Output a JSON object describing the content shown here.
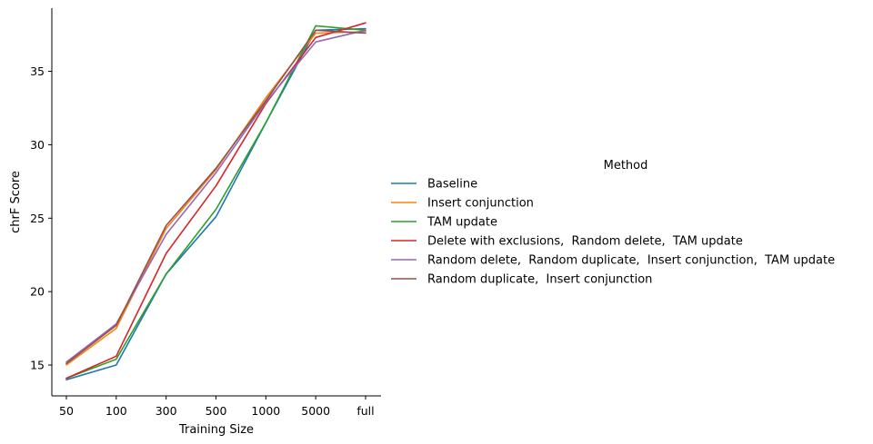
{
  "chart_data": {
    "type": "line",
    "xlabel": "Training Size",
    "ylabel": "chrF Score",
    "categories": [
      "50",
      "100",
      "300",
      "500",
      "1000",
      "5000",
      "full"
    ],
    "yticks": [
      15,
      20,
      25,
      30,
      35
    ],
    "ylim": [
      12.9,
      39.3
    ],
    "grid": false,
    "legend": {
      "title": "Method",
      "placement": "right"
    },
    "series": [
      {
        "name": "Baseline",
        "color": "#1f77b4",
        "values": [
          14.0,
          15.0,
          21.2,
          25.1,
          31.5,
          37.8,
          37.9
        ]
      },
      {
        "name": "Insert conjunction",
        "color": "#ff7f0e",
        "values": [
          15.0,
          17.5,
          24.3,
          28.3,
          33.2,
          37.6,
          37.7
        ]
      },
      {
        "name": "TAM update",
        "color": "#2ca02c",
        "values": [
          14.1,
          15.4,
          21.2,
          25.6,
          31.5,
          38.1,
          37.8
        ]
      },
      {
        "name": "Delete with exclusions,  Random delete,  TAM update",
        "color": "#d62728",
        "values": [
          14.1,
          15.6,
          22.6,
          27.2,
          32.8,
          37.3,
          38.3
        ]
      },
      {
        "name": "Random delete,  Random duplicate,  Insert conjunction,  TAM update",
        "color": "#9467bd",
        "values": [
          15.2,
          17.8,
          23.9,
          28.1,
          32.9,
          37.0,
          37.8
        ]
      },
      {
        "name": "Random duplicate,  Insert conjunction",
        "color": "#8c564b",
        "values": [
          15.1,
          17.7,
          24.5,
          28.4,
          33.0,
          37.8,
          37.6
        ]
      }
    ]
  }
}
